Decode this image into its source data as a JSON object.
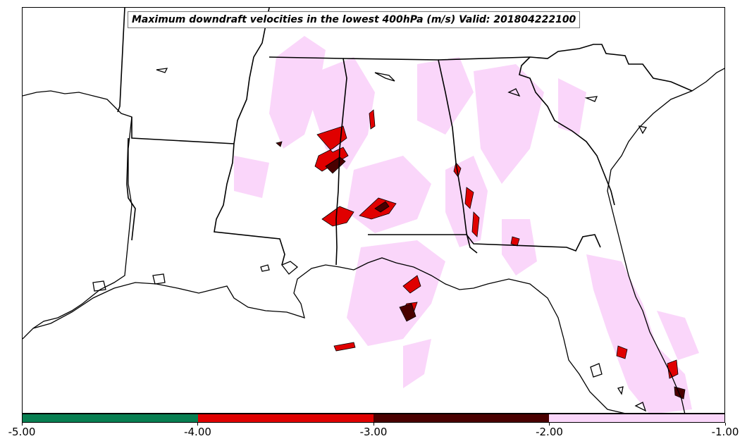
{
  "title": "Maximum downdraft velocities in the lowest 400hPa (m/s) Valid: 201804222100",
  "colorbar": {
    "ticks": [
      "-5.00",
      "-4.00",
      "-3.00",
      "-2.00",
      "-1.00"
    ],
    "bins": [
      {
        "range": [
          -5.0,
          -4.0
        ],
        "color": "#087f52"
      },
      {
        "range": [
          -4.0,
          -3.0
        ],
        "color": "#e00000"
      },
      {
        "range": [
          -3.0,
          -2.0
        ],
        "color": "#4a0000"
      },
      {
        "range": [
          -2.0,
          -1.0
        ],
        "color": "#fad6fa"
      }
    ]
  },
  "map": {
    "region": "southeastern United States and Gulf of Mexico",
    "features": [
      "coastlines",
      "state-borders"
    ]
  }
}
